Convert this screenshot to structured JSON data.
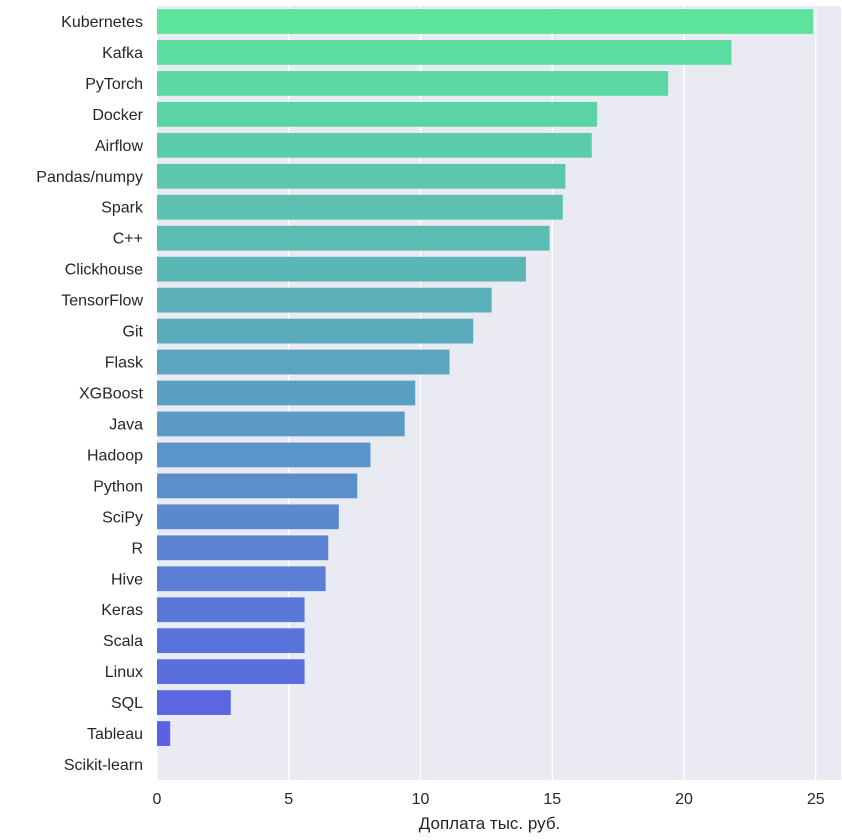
{
  "chart_data": {
    "type": "bar",
    "orientation": "horizontal",
    "title": "",
    "xlabel": "Доплата тыс. руб.",
    "ylabel": "",
    "xlim": [
      0,
      26
    ],
    "xticks": [
      0,
      5,
      10,
      15,
      20,
      25
    ],
    "xtick_labels": [
      "0",
      "5",
      "10",
      "15",
      "20",
      "25"
    ],
    "grid": true,
    "legend": "none",
    "colors": {
      "background": "#eaeaf2",
      "grid": "#ffffff",
      "bar_top": "#5ce39e",
      "bar_bottom": "#5a5ce6"
    },
    "categories": [
      "Kubernetes",
      "Kafka",
      "PyTorch",
      "Docker",
      "Airflow",
      "Pandas/numpy",
      "Spark",
      "C++",
      "Clickhouse",
      "TensorFlow",
      "Git",
      "Flask",
      "XGBoost",
      "Java",
      "Hadoop",
      "Python",
      "SciPy",
      "R",
      "Hive",
      "Keras",
      "Scala",
      "Linux",
      "SQL",
      "Tableau",
      "Scikit-learn"
    ],
    "values": [
      24.9,
      21.8,
      19.4,
      16.7,
      16.5,
      15.5,
      15.4,
      14.9,
      14.0,
      12.7,
      12.0,
      11.1,
      9.8,
      9.4,
      8.1,
      7.6,
      6.9,
      6.5,
      6.4,
      5.6,
      5.6,
      5.6,
      2.8,
      0.5,
      0.0
    ]
  }
}
